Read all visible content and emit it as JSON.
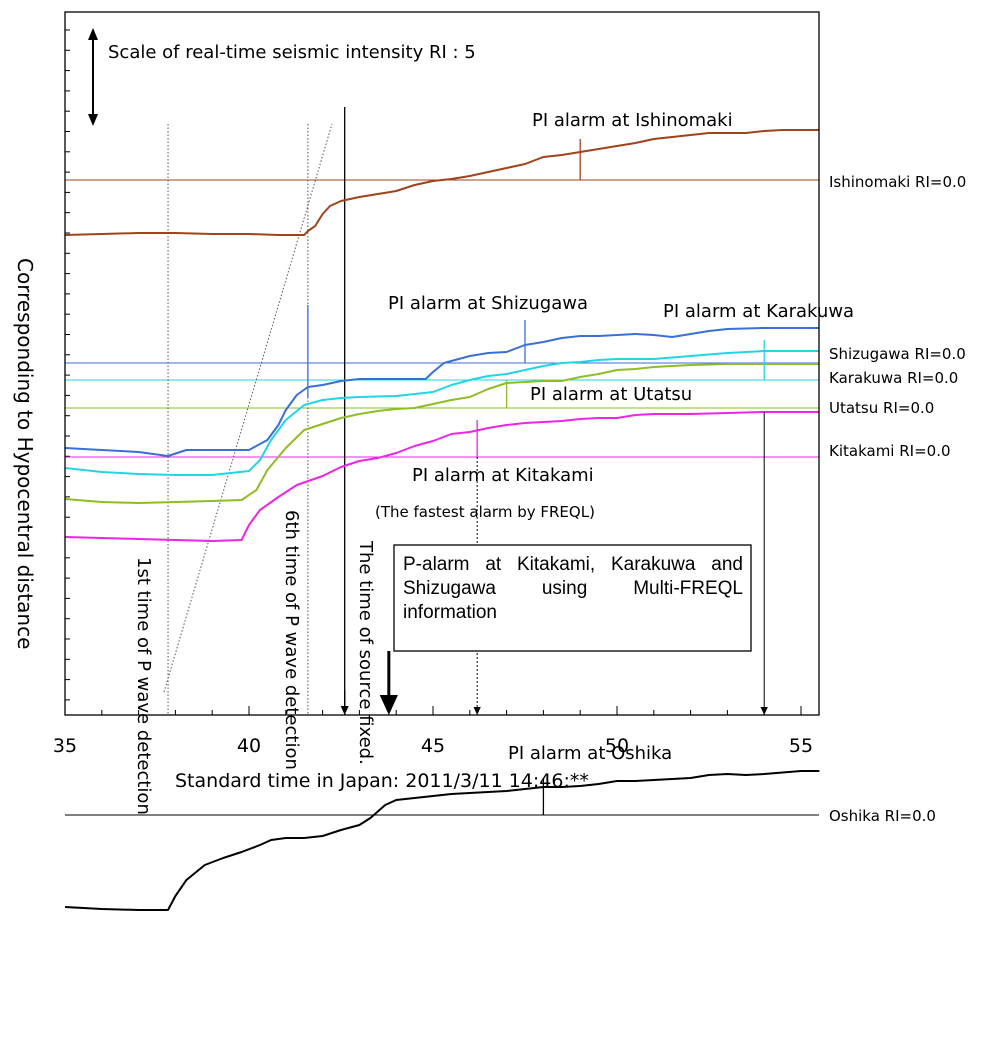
{
  "chart_data": {
    "type": "line",
    "xlabel": "Standard time in Japan:   2011/3/11 14:46:**",
    "ylabel": "Corresponding to Hypocentral distance",
    "xlim": [
      35,
      55.5
    ],
    "xticks": [
      "35",
      "40",
      "45",
      "50",
      "55"
    ],
    "scale_note": "Scale of real-time seismic intensity RI : 5",
    "grid": false,
    "series": [
      {
        "name": "Ishinomaki",
        "color": "#a0431a",
        "baseline_label": "Ishinomaki RI=0.0",
        "points": [
          [
            35,
            235
          ],
          [
            36,
            234
          ],
          [
            37,
            233
          ],
          [
            38,
            233
          ],
          [
            39,
            234
          ],
          [
            40,
            234
          ],
          [
            40.8,
            235
          ],
          [
            41.5,
            235
          ],
          [
            41.6,
            231
          ],
          [
            41.8,
            226
          ],
          [
            42.0,
            214
          ],
          [
            42.2,
            206
          ],
          [
            42.5,
            201
          ],
          [
            43,
            197
          ],
          [
            43.5,
            194
          ],
          [
            44,
            191
          ],
          [
            44.5,
            185
          ],
          [
            45,
            181
          ],
          [
            45.5,
            179
          ],
          [
            46,
            176
          ],
          [
            46.5,
            172
          ],
          [
            47,
            168
          ],
          [
            47.5,
            164
          ],
          [
            48,
            157
          ],
          [
            48.5,
            155
          ],
          [
            49,
            152
          ],
          [
            49.5,
            149
          ],
          [
            50,
            146
          ],
          [
            50.5,
            143
          ],
          [
            51,
            139
          ],
          [
            51.5,
            137
          ],
          [
            52,
            135
          ],
          [
            52.5,
            133
          ],
          [
            53,
            133
          ],
          [
            53.5,
            133
          ],
          [
            54,
            131
          ],
          [
            54.5,
            130
          ],
          [
            55,
            130
          ],
          [
            55.5,
            130
          ]
        ]
      },
      {
        "name": "Shizugawa",
        "color": "#3a6fd8",
        "baseline_label": "Shizugawa RI=0.0",
        "points": [
          [
            35,
            448
          ],
          [
            36,
            450
          ],
          [
            37,
            452
          ],
          [
            37.8,
            456
          ],
          [
            38.3,
            450
          ],
          [
            39,
            450
          ],
          [
            40,
            450
          ],
          [
            40.5,
            440
          ],
          [
            40.8,
            425
          ],
          [
            41,
            410
          ],
          [
            41.3,
            395
          ],
          [
            41.6,
            387
          ],
          [
            42,
            385
          ],
          [
            42.5,
            381
          ],
          [
            43,
            379
          ],
          [
            43.5,
            379
          ],
          [
            44,
            379
          ],
          [
            44.8,
            379
          ],
          [
            45,
            372
          ],
          [
            45.3,
            363
          ],
          [
            46,
            356
          ],
          [
            46.5,
            353
          ],
          [
            47,
            352
          ],
          [
            47.5,
            345
          ],
          [
            48,
            342
          ],
          [
            48.5,
            338
          ],
          [
            49,
            336
          ],
          [
            49.5,
            336
          ],
          [
            50,
            335
          ],
          [
            50.5,
            334
          ],
          [
            51,
            335
          ],
          [
            51.5,
            337
          ],
          [
            52,
            334
          ],
          [
            52.5,
            331
          ],
          [
            53,
            329
          ],
          [
            54,
            328
          ],
          [
            55,
            328
          ],
          [
            55.5,
            328
          ]
        ]
      },
      {
        "name": "Karakuwa",
        "color": "#22d4e6",
        "baseline_label": "Karakuwa RI=0.0",
        "points": [
          [
            35,
            468
          ],
          [
            36,
            472
          ],
          [
            37,
            474
          ],
          [
            38,
            475
          ],
          [
            39,
            475
          ],
          [
            40,
            471
          ],
          [
            40.3,
            460
          ],
          [
            40.6,
            440
          ],
          [
            41,
            420
          ],
          [
            41.5,
            405
          ],
          [
            42,
            400
          ],
          [
            42.5,
            398
          ],
          [
            43,
            397
          ],
          [
            44,
            396
          ],
          [
            45,
            392
          ],
          [
            45.5,
            385
          ],
          [
            46,
            380
          ],
          [
            46.5,
            376
          ],
          [
            47,
            374
          ],
          [
            47.5,
            370
          ],
          [
            48,
            366
          ],
          [
            48.5,
            363
          ],
          [
            49,
            362
          ],
          [
            49.5,
            360
          ],
          [
            50,
            359
          ],
          [
            51,
            359
          ],
          [
            52,
            356
          ],
          [
            53,
            353
          ],
          [
            54,
            351
          ],
          [
            55,
            351
          ],
          [
            55.5,
            351
          ]
        ]
      },
      {
        "name": "Utatsu",
        "color": "#8ebd24",
        "baseline_label": "Utatsu RI=0.0",
        "points": [
          [
            35,
            499
          ],
          [
            36,
            502
          ],
          [
            37,
            503
          ],
          [
            38,
            502
          ],
          [
            39,
            501
          ],
          [
            39.8,
            500
          ],
          [
            40.2,
            490
          ],
          [
            40.5,
            470
          ],
          [
            41,
            448
          ],
          [
            41.5,
            430
          ],
          [
            42,
            424
          ],
          [
            42.5,
            418
          ],
          [
            43,
            414
          ],
          [
            43.5,
            411
          ],
          [
            44,
            409
          ],
          [
            44.5,
            408
          ],
          [
            45,
            404
          ],
          [
            45.5,
            400
          ],
          [
            46,
            397
          ],
          [
            46.5,
            389
          ],
          [
            47,
            383
          ],
          [
            47.5,
            382
          ],
          [
            48,
            381
          ],
          [
            48.5,
            381
          ],
          [
            49,
            377
          ],
          [
            49.5,
            374
          ],
          [
            50,
            370
          ],
          [
            50.5,
            369
          ],
          [
            51,
            367
          ],
          [
            51.5,
            366
          ],
          [
            52,
            365
          ],
          [
            53,
            364
          ],
          [
            54,
            364
          ],
          [
            55,
            364
          ],
          [
            55.5,
            364
          ]
        ]
      },
      {
        "name": "Kitakami",
        "color": "#ec25e8",
        "baseline_label": "Kitakami RI=0.0",
        "points": [
          [
            35,
            537
          ],
          [
            36,
            538
          ],
          [
            37,
            539
          ],
          [
            38,
            540
          ],
          [
            39,
            541
          ],
          [
            39.8,
            540
          ],
          [
            40,
            525
          ],
          [
            40.3,
            510
          ],
          [
            40.8,
            497
          ],
          [
            41.3,
            485
          ],
          [
            42,
            476
          ],
          [
            42.5,
            467
          ],
          [
            43,
            461
          ],
          [
            43.5,
            458
          ],
          [
            44,
            453
          ],
          [
            44.5,
            446
          ],
          [
            45,
            441
          ],
          [
            45.5,
            434
          ],
          [
            46,
            432
          ],
          [
            46.5,
            428
          ],
          [
            47,
            425
          ],
          [
            47.5,
            423
          ],
          [
            48,
            422
          ],
          [
            48.5,
            421
          ],
          [
            49,
            419
          ],
          [
            49.5,
            418
          ],
          [
            50,
            418
          ],
          [
            50.5,
            415
          ],
          [
            51,
            414
          ],
          [
            52,
            414
          ],
          [
            53,
            413
          ],
          [
            54,
            412
          ],
          [
            55,
            412
          ],
          [
            55.5,
            412
          ]
        ]
      },
      {
        "name": "Oshika",
        "color": "#000000",
        "baseline_label": "Oshika RI=0.0",
        "points": [
          [
            35,
            907
          ],
          [
            36,
            909
          ],
          [
            37,
            910
          ],
          [
            37.8,
            910
          ],
          [
            38,
            896
          ],
          [
            38.3,
            880
          ],
          [
            38.8,
            865
          ],
          [
            39.3,
            858
          ],
          [
            39.8,
            852
          ],
          [
            40.3,
            845
          ],
          [
            40.6,
            840
          ],
          [
            41,
            838
          ],
          [
            41.5,
            838
          ],
          [
            42,
            836
          ],
          [
            42.5,
            830
          ],
          [
            43,
            825
          ],
          [
            43.3,
            818
          ],
          [
            43.7,
            805
          ],
          [
            44,
            800
          ],
          [
            44.5,
            798
          ],
          [
            45,
            796
          ],
          [
            45.5,
            794
          ],
          [
            46,
            793
          ],
          [
            46.5,
            792
          ],
          [
            47,
            791
          ],
          [
            47.5,
            789
          ],
          [
            48,
            787
          ],
          [
            48.5,
            787
          ],
          [
            49,
            786
          ],
          [
            49.5,
            784
          ],
          [
            50,
            781
          ],
          [
            50.5,
            781
          ],
          [
            51,
            780
          ],
          [
            51.5,
            779
          ],
          [
            52,
            778
          ],
          [
            52.5,
            775
          ],
          [
            53,
            774
          ],
          [
            53.5,
            775
          ],
          [
            54,
            774
          ],
          [
            55,
            771
          ],
          [
            55.5,
            771
          ]
        ]
      }
    ],
    "baselines": [
      {
        "name": "Ishinomaki RI=0.0",
        "color": "#a0431a",
        "y": 180
      },
      {
        "name": "Shizugawa RI=0.0",
        "color": "#3a6fd8",
        "y": 363
      },
      {
        "name": "Karakuwa RI=0.0",
        "color": "#22d4e6",
        "y": 380
      },
      {
        "name": "Utatsu RI=0.0",
        "color": "#8ebd24",
        "y": 408
      },
      {
        "name": "Kitakami RI=0.0",
        "color": "#ec25e8",
        "y": 457
      },
      {
        "name": "Oshika RI=0.0",
        "color": "#000000",
        "y": 815
      }
    ],
    "pi_alarms": [
      {
        "label": "PI alarm at Ishinomaki",
        "x": 49.0,
        "color": "#a0431a"
      },
      {
        "label": "PI alarm at Shizugawa",
        "x": 47.5,
        "color": "#3a6fd8"
      },
      {
        "label": "PI alarm at Karakuwa",
        "x": 54.0,
        "color": "#22d4e6"
      },
      {
        "label": "PI alarm at Utatsu",
        "x": 47.0,
        "color": "#8ebd24"
      },
      {
        "label": "PI alarm at Kitakami",
        "x": 46.2,
        "color": "#ec25e8"
      },
      {
        "label": "PI alarm at Oshika",
        "x": 48.0,
        "color": "#000000"
      }
    ],
    "fastest_note": "(The fastest alarm by FREQL)",
    "event_lines": [
      {
        "label": "1st time of P wave detection",
        "x": 37.8
      },
      {
        "label": "6th time of P wave detection",
        "x": 41.6
      },
      {
        "label": "The time of source fixed.",
        "x": 42.6
      }
    ],
    "p_alarm_box": "P-alarm at Kitakami, Karakuwa and Shizugawa using Multi-FREQL information",
    "p_alarm_x": 43.8
  }
}
